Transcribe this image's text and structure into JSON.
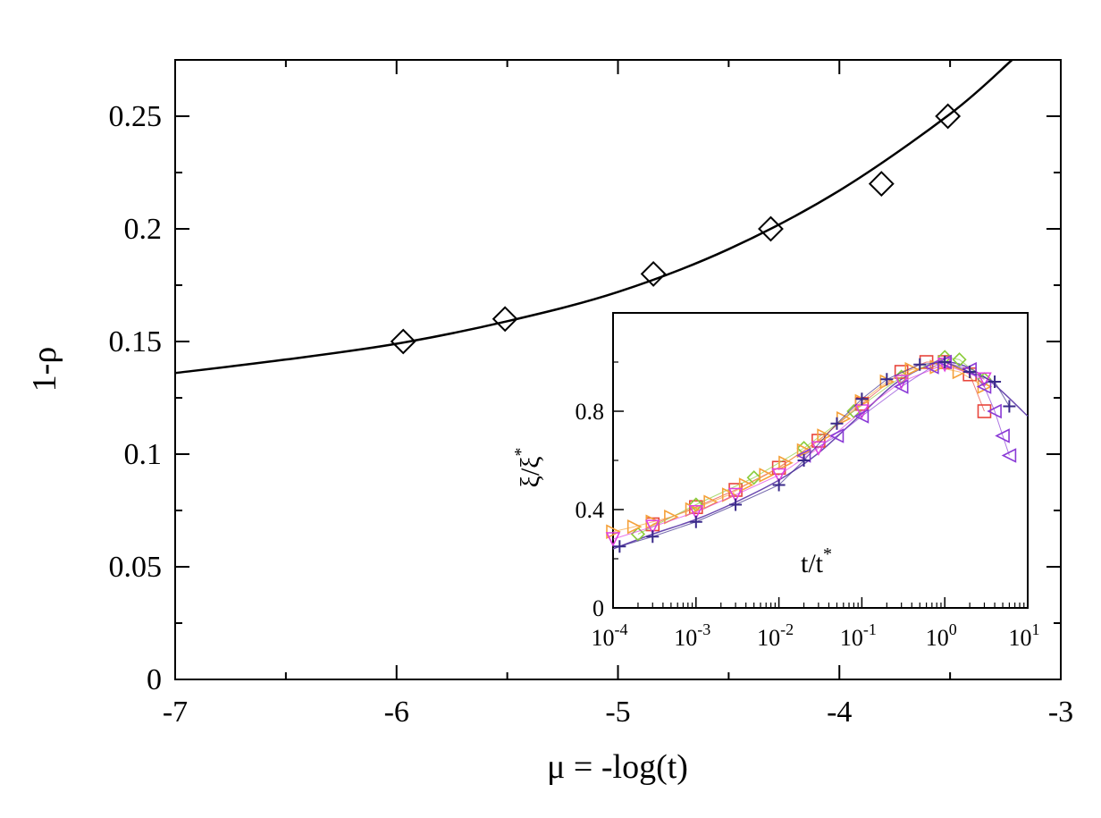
{
  "chart_data": [
    {
      "type": "scatter",
      "xlabel": "μ = -log(t)",
      "ylabel": "1-ρ",
      "xlim": [
        -7,
        -3
      ],
      "ylim": [
        0,
        0.275
      ],
      "x_ticks": [
        -7,
        -6,
        -5,
        -4,
        -3
      ],
      "x_tick_labels": [
        "-7",
        "-6",
        "-5",
        "-4",
        "-3"
      ],
      "y_ticks": [
        0,
        0.05,
        0.1,
        0.15,
        0.2,
        0.25
      ],
      "y_tick_labels": [
        "0",
        "0.05",
        "0.1",
        "0.15",
        "0.2",
        "0.25"
      ],
      "series": [
        {
          "name": "data",
          "marker": "diamond",
          "x": [
            -5.97,
            -5.51,
            -4.84,
            -4.31,
            -3.81,
            -3.51
          ],
          "y": [
            0.15,
            0.16,
            0.18,
            0.2,
            0.22,
            0.25
          ]
        },
        {
          "name": "fit",
          "style": "line",
          "x": [
            -7.0,
            -6.5,
            -6.0,
            -5.5,
            -5.0,
            -4.5,
            -4.0,
            -3.5,
            -3.22
          ],
          "y": [
            0.136,
            0.142,
            0.149,
            0.159,
            0.172,
            0.191,
            0.217,
            0.251,
            0.275
          ]
        }
      ]
    },
    {
      "type": "scatter",
      "inset": true,
      "xlabel": "t/t*",
      "ylabel": "ξ/ξ*",
      "xscale": "log",
      "xlim": [
        0.0001,
        10
      ],
      "ylim": [
        0,
        1.2
      ],
      "x_ticks": [
        0.0001,
        0.001,
        0.01,
        0.1,
        1,
        10
      ],
      "x_tick_labels": [
        {
          "base": "10",
          "exp": "-4"
        },
        {
          "base": "10",
          "exp": "-3"
        },
        {
          "base": "10",
          "exp": "-2"
        },
        {
          "base": "10",
          "exp": "-1"
        },
        {
          "base": "10",
          "exp": "0"
        },
        {
          "base": "10",
          "exp": "1"
        }
      ],
      "y_ticks": [
        0,
        0.4,
        0.8
      ],
      "y_tick_labels": [
        "0",
        "0.4",
        "0.8"
      ],
      "series": [
        {
          "name": "red squares",
          "color": "#e8453c",
          "marker": "square",
          "x": [
            0.0003,
            0.001,
            0.003,
            0.01,
            0.03,
            0.1,
            0.3,
            0.6,
            1,
            2,
            3
          ],
          "y": [
            0.34,
            0.41,
            0.48,
            0.57,
            0.68,
            0.83,
            0.96,
            1.0,
            1.0,
            0.95,
            0.8
          ]
        },
        {
          "name": "green",
          "color": "#8ccc3c",
          "marker": "diamond",
          "x": [
            0.0002,
            0.001,
            0.005,
            0.02,
            0.08,
            0.3,
            1,
            1.5,
            3
          ],
          "y": [
            0.3,
            0.42,
            0.53,
            0.65,
            0.8,
            0.94,
            1.02,
            1.01,
            0.93
          ]
        },
        {
          "name": "orange right triangles",
          "color": "#f5a13a",
          "marker": "triangle-right",
          "x": [
            0.0001,
            0.00018,
            0.0003,
            0.0005,
            0.0009,
            0.0015,
            0.0025,
            0.004,
            0.007,
            0.012,
            0.02,
            0.035,
            0.06,
            0.1,
            0.2,
            0.4,
            0.8,
            1.5,
            3
          ],
          "y": [
            0.31,
            0.33,
            0.35,
            0.37,
            0.4,
            0.43,
            0.46,
            0.5,
            0.54,
            0.59,
            0.64,
            0.7,
            0.77,
            0.84,
            0.92,
            0.97,
            0.98,
            0.96,
            0.9
          ]
        },
        {
          "name": "magenta down triangles",
          "color": "#e040e0",
          "marker": "triangle-down",
          "x": [
            0.0001,
            0.0003,
            0.001,
            0.003,
            0.01,
            0.03,
            0.1,
            0.3,
            1,
            3
          ],
          "y": [
            0.28,
            0.33,
            0.39,
            0.46,
            0.54,
            0.65,
            0.8,
            0.92,
            0.99,
            0.93
          ]
        },
        {
          "name": "purple left triangles",
          "color": "#8a3ad6",
          "marker": "triangle-left",
          "x": [
            0.02,
            0.05,
            0.1,
            0.3,
            0.7,
            1,
            2,
            3,
            4,
            5,
            6
          ],
          "y": [
            0.62,
            0.7,
            0.78,
            0.9,
            0.98,
            1.0,
            0.97,
            0.9,
            0.8,
            0.7,
            0.62
          ]
        },
        {
          "name": "navy plus",
          "color": "#3a2a8a",
          "marker": "plus",
          "x": [
            0.00012,
            0.0003,
            0.001,
            0.003,
            0.01,
            0.02,
            0.05,
            0.1,
            0.2,
            0.5,
            1,
            2,
            4,
            6
          ],
          "y": [
            0.25,
            0.29,
            0.35,
            0.42,
            0.5,
            0.6,
            0.75,
            0.85,
            0.93,
            0.99,
            1.0,
            0.96,
            0.92,
            0.82
          ]
        }
      ],
      "reference_line": {
        "name": "scaling curve",
        "color": "#6b4ab0",
        "x": [
          0.0001,
          0.0003,
          0.001,
          0.003,
          0.01,
          0.03,
          0.1,
          0.3,
          1,
          3,
          10
        ],
        "y": [
          0.24,
          0.3,
          0.36,
          0.43,
          0.52,
          0.63,
          0.79,
          0.93,
          1.0,
          0.94,
          0.78
        ]
      }
    }
  ]
}
